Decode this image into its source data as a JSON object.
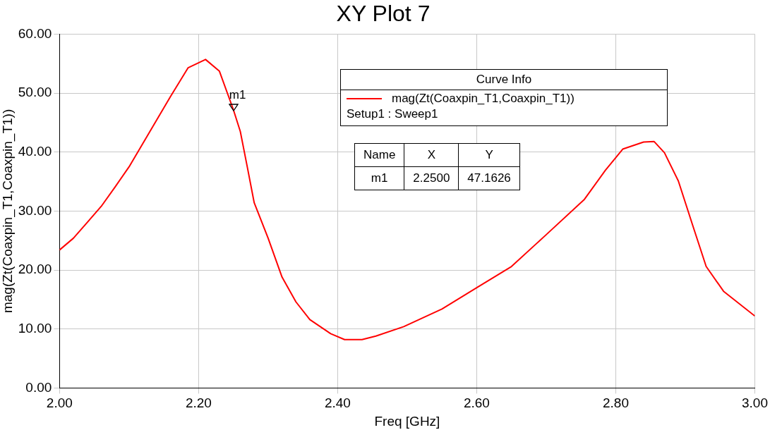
{
  "chart_data": {
    "type": "line",
    "title": "XY Plot 7",
    "xlabel": "Freq [GHz]",
    "ylabel": "mag(Zt(Coaxpin_T1,Coaxpin_T1))",
    "legend_title": "Curve Info",
    "legend": "top right",
    "grid": true,
    "marker": "none",
    "line_style": "solid",
    "xlim": [
      2,
      3
    ],
    "ylim": [
      0,
      60
    ],
    "xticks": [
      {
        "value": 2,
        "label": "2.00"
      },
      {
        "value": 2.2,
        "label": "2.20"
      },
      {
        "value": 2.4,
        "label": "2.40"
      },
      {
        "value": 2.6,
        "label": "2.60"
      },
      {
        "value": 2.8,
        "label": "2.80"
      },
      {
        "value": 3,
        "label": "3.00"
      }
    ],
    "yticks": [
      {
        "value": 0,
        "label": "0.00"
      },
      {
        "value": 10,
        "label": "10.00"
      },
      {
        "value": 20,
        "label": "20.00"
      },
      {
        "value": 30,
        "label": "30.00"
      },
      {
        "value": 40,
        "label": "40.00"
      },
      {
        "value": 50,
        "label": "50.00"
      },
      {
        "value": 60,
        "label": "60.00"
      }
    ],
    "series": [
      {
        "name": "mag(Zt(Coaxpin_T1,Coaxpin_T1))",
        "color": "#ff0000",
        "x": [
          2.0,
          2.02,
          2.04,
          2.06,
          2.08,
          2.1,
          2.12,
          2.14,
          2.16,
          2.185,
          2.21,
          2.23,
          2.25,
          2.26,
          2.27,
          2.28,
          2.3,
          2.32,
          2.34,
          2.36,
          2.39,
          2.41,
          2.435,
          2.455,
          2.495,
          2.55,
          2.6,
          2.65,
          2.7,
          2.755,
          2.785,
          2.81,
          2.84,
          2.855,
          2.87,
          2.89,
          2.91,
          2.93,
          2.955,
          3.0
        ],
        "values": [
          23.4,
          25.4,
          28.1,
          30.8,
          34.1,
          37.5,
          41.5,
          45.5,
          49.5,
          54.3,
          55.7,
          53.7,
          47.2,
          43.5,
          37.5,
          31.4,
          25.4,
          18.8,
          14.6,
          11.6,
          9.2,
          8.2,
          8.2,
          8.8,
          10.4,
          13.4,
          17.0,
          20.6,
          26.0,
          32.0,
          36.9,
          40.5,
          41.7,
          41.8,
          39.9,
          35.1,
          27.8,
          20.6,
          16.4,
          12.2
        ]
      }
    ],
    "annotations": [
      {
        "text": "m1",
        "x": 2.25,
        "y": 47.1626
      },
      "Setup1 : Sweep1",
      "Name",
      "X",
      "Y",
      "m1",
      "2.2500",
      "47.1626"
    ]
  }
}
